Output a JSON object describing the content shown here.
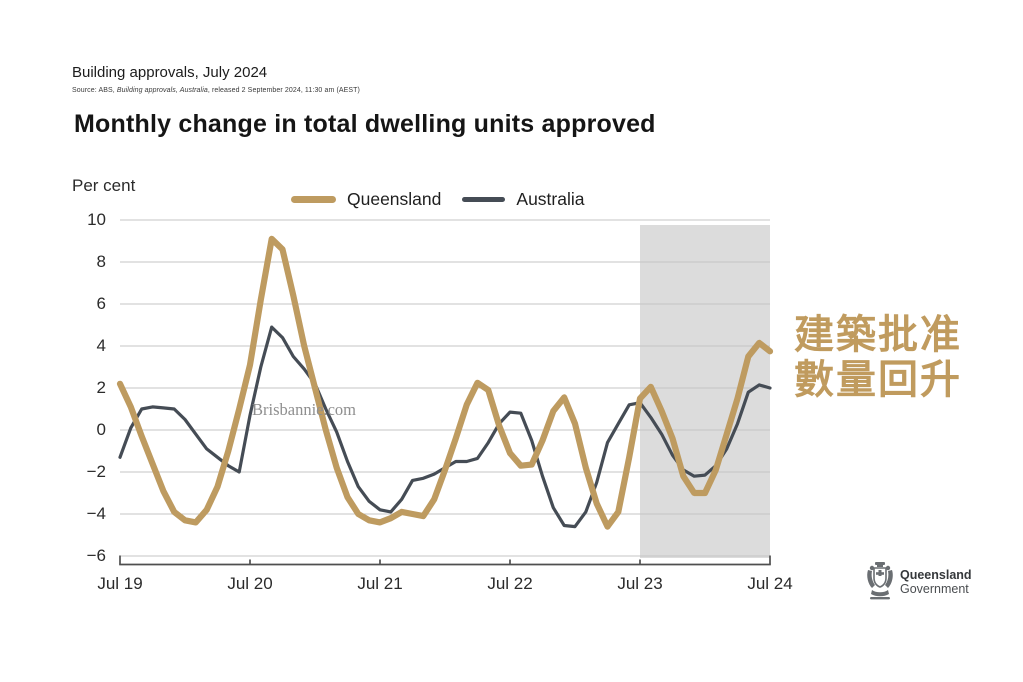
{
  "header": {
    "title": "Building approvals, July 2024",
    "source_prefix": "Source: ABS, ",
    "source_italic": "Building approvals, Australia",
    "source_suffix": ", released 2 September 2024, 11:30 am (AEST)"
  },
  "chart": {
    "title": "Monthly change in total dwelling units approved",
    "unit_label": "Per cent"
  },
  "chart_data": {
    "type": "line",
    "title": "Monthly change in total dwelling units approved",
    "ylabel": "Per cent",
    "ylim": [
      -6,
      10
    ],
    "ytick_interval": 2,
    "grid": true,
    "legend_position": "top",
    "x_axis": {
      "unit": "month",
      "start": "Jul 2019",
      "end": "Jul 2024",
      "tick_labels": [
        "Jul 19",
        "Jul 20",
        "Jul 21",
        "Jul 22",
        "Jul 23",
        "Jul 24"
      ],
      "tick_month_indexes": [
        0,
        12,
        24,
        36,
        48,
        60
      ]
    },
    "shaded_region": {
      "from_month_index": 48,
      "to_month_index": 60,
      "color": "#dcdcdc"
    },
    "gridline_color": "#c4c4c4",
    "axis_color": "#4f4f4f",
    "series": [
      {
        "name": "Queensland",
        "color": "#BE9B60",
        "stroke_width": 6.2,
        "values": [
          2.2,
          1.1,
          -0.3,
          -1.6,
          -2.9,
          -3.9,
          -4.3,
          -4.4,
          -3.8,
          -2.7,
          -1.0,
          1.0,
          3.1,
          6.2,
          9.1,
          8.6,
          6.4,
          4.0,
          2.0,
          0.0,
          -1.8,
          -3.2,
          -4.0,
          -4.3,
          -4.4,
          -4.2,
          -3.9,
          -4.0,
          -4.1,
          -3.3,
          -1.9,
          -0.4,
          1.2,
          2.25,
          1.9,
          0.2,
          -1.1,
          -1.7,
          -1.65,
          -0.5,
          0.9,
          1.55,
          0.3,
          -1.8,
          -3.5,
          -4.6,
          -3.9,
          -1.3,
          1.5,
          2.05,
          0.9,
          -0.4,
          -2.2,
          -3.0,
          -3.0,
          -1.9,
          -0.2,
          1.5,
          3.5,
          4.15,
          3.75
        ]
      },
      {
        "name": "Australia",
        "color": "#454C55",
        "stroke_width": 3.2,
        "values": [
          -1.3,
          0.1,
          1.0,
          1.1,
          1.05,
          1.0,
          0.5,
          -0.2,
          -0.9,
          -1.3,
          -1.7,
          -2.0,
          0.7,
          3.0,
          4.9,
          4.4,
          3.5,
          2.9,
          2.2,
          1.0,
          -0.1,
          -1.5,
          -2.7,
          -3.4,
          -3.8,
          -3.9,
          -3.3,
          -2.4,
          -2.3,
          -2.1,
          -1.8,
          -1.5,
          -1.5,
          -1.35,
          -0.6,
          0.3,
          0.85,
          0.8,
          -0.5,
          -2.2,
          -3.7,
          -4.55,
          -4.6,
          -3.9,
          -2.5,
          -0.6,
          0.3,
          1.2,
          1.3,
          0.6,
          -0.2,
          -1.2,
          -1.9,
          -2.2,
          -2.15,
          -1.7,
          -0.9,
          0.3,
          1.8,
          2.15,
          2.0
        ]
      }
    ]
  },
  "watermark": "Brisbannie.com",
  "annotation": {
    "line1": "建築批准",
    "line2": "數量回升",
    "color": "#C09B5E"
  },
  "logo": {
    "line1": "Queensland",
    "line2": "Government"
  }
}
